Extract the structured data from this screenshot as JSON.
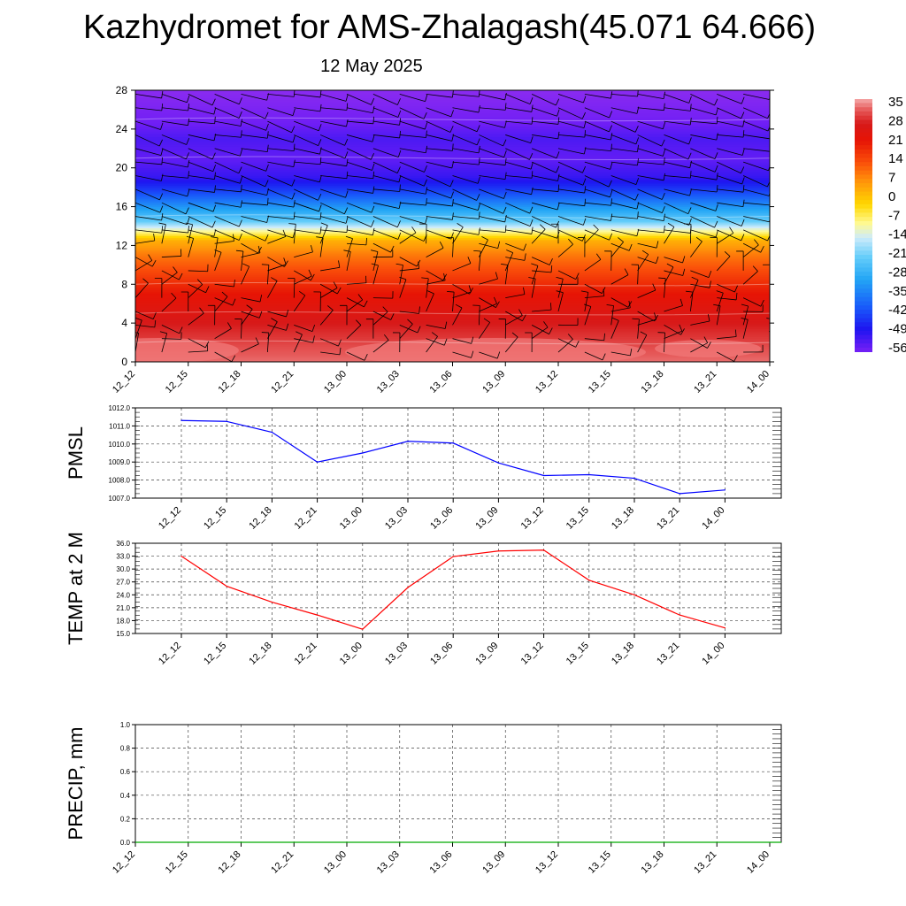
{
  "title": "Kazhydromet for AMS-Zhalagash(45.071 64.666)",
  "subtitle": "12 May 2025",
  "chart_data": [
    {
      "id": "cross_section",
      "type": "heatmap",
      "title": "",
      "ylim": [
        0,
        28
      ],
      "y_ticks": [
        "0",
        "4",
        "8",
        "12",
        "16",
        "20",
        "24",
        "28"
      ],
      "x_ticks": [
        "12_12",
        "12_15",
        "12_18",
        "12_21",
        "13_00",
        "13_03",
        "13_06",
        "13_09",
        "13_12",
        "13_15",
        "13_18",
        "13_21",
        "14_00"
      ],
      "colorbar_labels": [
        "35",
        "28",
        "21",
        "14",
        "7",
        "0",
        "-7",
        "-14",
        "-21",
        "-28",
        "-35",
        "-42",
        "-49",
        "-56"
      ],
      "colorbar_range": [
        -56,
        35
      ],
      "level_temperature": [
        [
          0,
          32
        ],
        [
          1.5,
          30
        ],
        [
          4,
          26
        ],
        [
          7,
          20
        ],
        [
          9,
          14
        ],
        [
          11,
          8
        ],
        [
          12.5,
          2
        ],
        [
          13.3,
          -8
        ],
        [
          14.5,
          -22
        ],
        [
          16,
          -32
        ],
        [
          17.5,
          -42
        ],
        [
          19,
          -50
        ],
        [
          21,
          -54
        ],
        [
          23,
          -52
        ],
        [
          25,
          -56
        ],
        [
          28,
          -60
        ]
      ],
      "wind_barbs": true,
      "grid": false
    },
    {
      "id": "pmsl",
      "type": "line",
      "ylabel": "PMSL",
      "ylim": [
        1007.0,
        1012.0
      ],
      "y_ticks": [
        "1007.0",
        "1008.0",
        "1009.0",
        "1010.0",
        "1011.0",
        "1012.0"
      ],
      "x_ticks": [
        "12_12",
        "12_15",
        "12_18",
        "12_21",
        "13_00",
        "13_03",
        "13_06",
        "13_09",
        "13_12",
        "13_15",
        "13_18",
        "13_21",
        "14_00"
      ],
      "values": [
        1011.3,
        1011.25,
        1010.65,
        1009.0,
        1009.5,
        1010.15,
        1010.05,
        1008.95,
        1008.25,
        1008.3,
        1008.1,
        1007.25,
        1007.45
      ],
      "color": "#0000ff",
      "grid": true
    },
    {
      "id": "temp2m",
      "type": "line",
      "ylabel": "TEMP at 2 M",
      "ylim": [
        15.0,
        36.0
      ],
      "y_ticks": [
        "15.0",
        "18.0",
        "21.0",
        "24.0",
        "27.0",
        "30.0",
        "33.0",
        "36.0"
      ],
      "x_ticks": [
        "12_12",
        "12_15",
        "12_18",
        "12_21",
        "13_00",
        "13_03",
        "13_06",
        "13_09",
        "13_12",
        "13_15",
        "13_18",
        "13_21",
        "14_00"
      ],
      "values": [
        33.0,
        26.0,
        22.3,
        19.3,
        16.0,
        25.7,
        32.9,
        34.2,
        34.4,
        27.4,
        24.0,
        19.3,
        16.3
      ],
      "color": "#ff0000",
      "grid": true
    },
    {
      "id": "precip",
      "type": "line",
      "ylabel": "PRECIP, mm",
      "ylim": [
        0.0,
        1.0
      ],
      "y_ticks": [
        "0.0",
        "0.2",
        "0.4",
        "0.6",
        "0.8",
        "1.0"
      ],
      "x_ticks": [
        "12_12",
        "12_15",
        "12_18",
        "12_21",
        "13_00",
        "13_03",
        "13_06",
        "13_09",
        "13_12",
        "13_15",
        "13_18",
        "13_21",
        "14_00"
      ],
      "values": [
        0,
        0,
        0,
        0,
        0,
        0,
        0,
        0,
        0,
        0,
        0,
        0,
        0
      ],
      "color": "#00aa00",
      "grid": true
    }
  ]
}
